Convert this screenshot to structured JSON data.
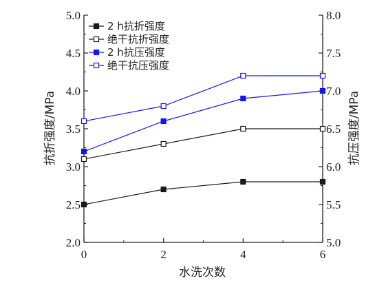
{
  "chart_data": {
    "type": "line",
    "x": [
      0,
      2,
      4,
      6
    ],
    "xlim": [
      0,
      6
    ],
    "xticks": [
      "0",
      "2",
      "4",
      "6"
    ],
    "xlabel": "水洗次数",
    "ylabel_left": "抗折强度/MPa",
    "ylim_left": [
      2.0,
      5.0
    ],
    "yticks_left": [
      "2.0",
      "2.5",
      "3.0",
      "3.5",
      "4.0",
      "4.5",
      "5.0"
    ],
    "ylabel_right": "抗压强度/MPa",
    "ylim_right": [
      5.0,
      8.0
    ],
    "yticks_right": [
      "5.0",
      "5.5",
      "6.0",
      "6.5",
      "7.0",
      "7.5",
      "8.0"
    ],
    "grid": false,
    "legend_position": "top-left",
    "series": [
      {
        "name": "2 h抗折强度",
        "axis": "left",
        "marker": "filled-square",
        "color": "#1a1a1a",
        "values": [
          2.5,
          2.7,
          2.8,
          2.8
        ]
      },
      {
        "name": "绝干抗折强度",
        "axis": "left",
        "marker": "open-square",
        "color": "#1a1a1a",
        "values": [
          3.1,
          3.3,
          3.5,
          3.5
        ]
      },
      {
        "name": "2 h抗压强度",
        "axis": "right",
        "marker": "filled-square",
        "color": "#1515ee",
        "values": [
          6.2,
          6.6,
          6.9,
          7.0
        ]
      },
      {
        "name": "绝干抗压强度",
        "axis": "right",
        "marker": "open-square",
        "color": "#1515ee",
        "values": [
          6.6,
          6.8,
          7.2,
          7.2
        ]
      }
    ]
  }
}
